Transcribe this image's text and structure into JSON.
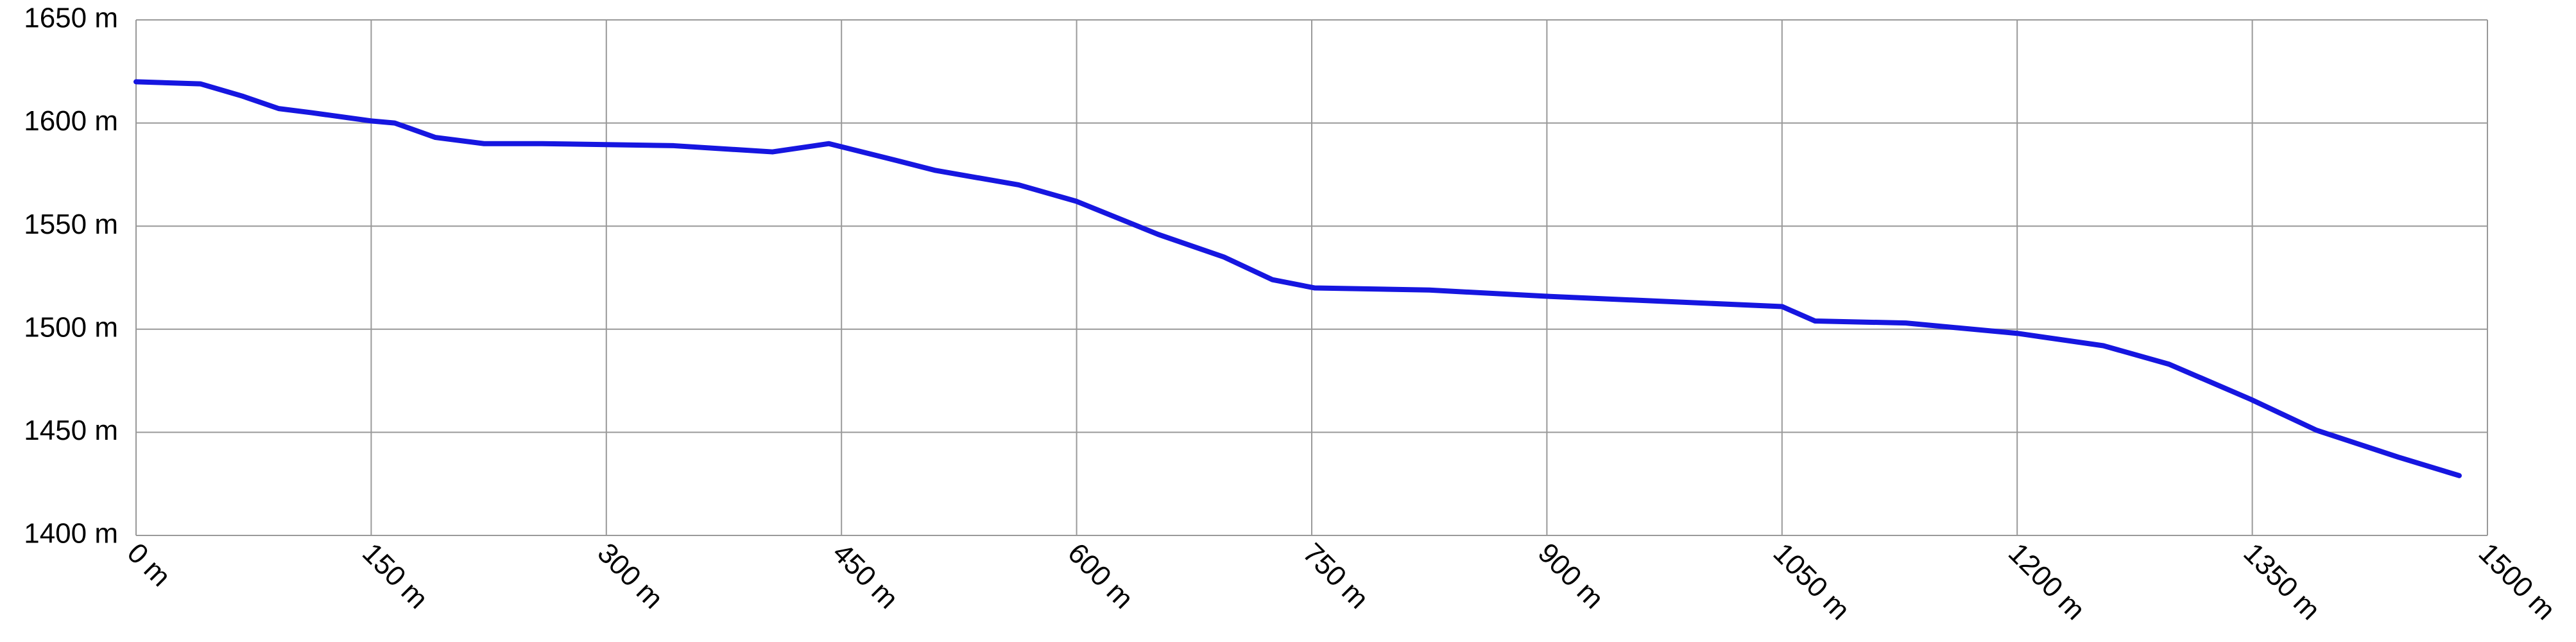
{
  "chart_data": {
    "type": "line",
    "x": [
      0,
      41,
      68,
      91,
      112,
      150,
      165,
      191,
      222,
      259,
      343,
      406,
      442,
      479,
      510,
      563,
      600,
      652,
      694,
      725,
      752,
      825,
      899,
      1050,
      1071,
      1129,
      1200,
      1255,
      1297,
      1349,
      1391,
      1443,
      1482
    ],
    "series": [
      {
        "color": "#1616e0",
        "values": [
          1620,
          1619,
          1613,
          1607,
          1605,
          1601,
          1600,
          1593,
          1590,
          1590,
          1589,
          1586,
          1590,
          1583,
          1577,
          1570,
          1562,
          1546,
          1535,
          1524,
          1520,
          1519,
          1516,
          1511,
          1504,
          1503,
          1498,
          1492,
          1483,
          1466,
          1451,
          1438,
          1429
        ]
      }
    ],
    "xlim": [
      0,
      1500
    ],
    "xticks": [
      {
        "value": 0,
        "label": "0 m"
      },
      {
        "value": 150,
        "label": "150 m"
      },
      {
        "value": 300,
        "label": "300 m"
      },
      {
        "value": 450,
        "label": "450 m"
      },
      {
        "value": 600,
        "label": "600 m"
      },
      {
        "value": 750,
        "label": "750 m"
      },
      {
        "value": 900,
        "label": "900 m"
      },
      {
        "value": 1050,
        "label": "1050 m"
      },
      {
        "value": 1200,
        "label": "1200 m"
      },
      {
        "value": 1350,
        "label": "1350 m"
      },
      {
        "value": 1500,
        "label": "1500 m"
      }
    ],
    "ylim": [
      1400,
      1650
    ],
    "yticks": [
      {
        "value": 1400,
        "label": "1400 m"
      },
      {
        "value": 1450,
        "label": "1450 m"
      },
      {
        "value": 1500,
        "label": "1500 m"
      },
      {
        "value": 1550,
        "label": "1550 m"
      },
      {
        "value": 1600,
        "label": "1600 m"
      },
      {
        "value": 1650,
        "label": "1650 m"
      }
    ],
    "grid": true
  }
}
